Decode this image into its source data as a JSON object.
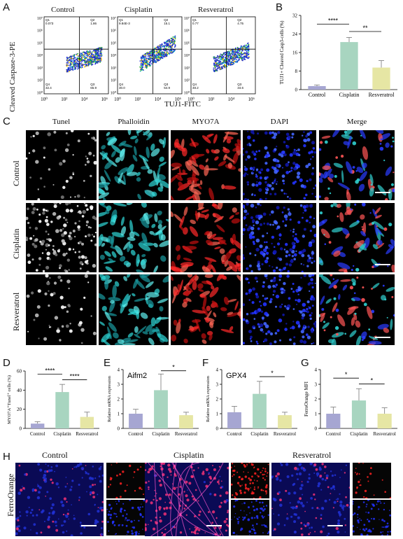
{
  "panels": {
    "A": "A",
    "B": "B",
    "C": "C",
    "D": "D",
    "E": "E",
    "F": "F",
    "G": "G",
    "H": "H"
  },
  "panelA": {
    "ylabel": "Cleaved Caspase-3-PE",
    "xlabel": "TUJ1-FITC",
    "plots": [
      {
        "title": "Control",
        "q1": "Q1\n0.073",
        "q2": "Q2\n1.86",
        "q3": "Q3\n65.9",
        "q4": "Q4\n32.4"
      },
      {
        "title": "Cisplatin",
        "q1": "Q1\n9.84E-3",
        "q2": "Q2\n15.1",
        "q3": "Q3\n54.9",
        "q4": "Q4\n30.0"
      },
      {
        "title": "Resveratrol",
        "q1": "Q1\n0.77",
        "q2": "Q2\n4.75",
        "q3": "Q3\n34.6",
        "q4": "Q4\n48.2"
      }
    ],
    "x_ticks": [
      "10⁰",
      "10²",
      "10⁴",
      "10⁶"
    ],
    "y_ticks": [
      "10⁷",
      "10⁶",
      "10⁵",
      "10⁴",
      "10³",
      "10²",
      "10⁰"
    ]
  },
  "panelC": {
    "columns": [
      "Tunel",
      "Phalloidin",
      "MYO7A",
      "DAPI",
      "Merge"
    ],
    "rows": [
      "Control",
      "Cisplatin",
      "Resveratrol"
    ]
  },
  "panelH": {
    "side_label": "FerroOrange",
    "groups": [
      "Control",
      "Cisplatin",
      "Resveratrol"
    ]
  },
  "colors": {
    "Control": "#a6a6d2",
    "Cisplatin": "#a8d5c0",
    "Resveratrol": "#e6e6a4"
  },
  "chart_data": [
    {
      "panel": "B",
      "type": "bar",
      "categories": [
        "Control",
        "Cisplatin",
        "Resveratrol"
      ],
      "values": [
        1.5,
        20.5,
        9.5
      ],
      "errors": [
        0.5,
        2.0,
        3.0
      ],
      "ylabel": "TUJ1+ Cleaved Casp3-cells (%)",
      "ylim": [
        0,
        32
      ],
      "yticks": [
        0,
        8,
        16,
        24,
        32
      ],
      "sig": [
        {
          "a": 0,
          "b": 1,
          "label": "****"
        },
        {
          "a": 1,
          "b": 2,
          "label": "**"
        }
      ]
    },
    {
      "panel": "D",
      "type": "bar",
      "categories": [
        "Control",
        "Cisplatin",
        "Resveratrol"
      ],
      "values": [
        5,
        38,
        12
      ],
      "errors": [
        2,
        8,
        5
      ],
      "ylabel": "MYO7A⁺Tunel⁺ cells (%)",
      "ylim": [
        0,
        60
      ],
      "yticks": [
        0,
        20,
        40,
        60
      ],
      "sig": [
        {
          "a": 0,
          "b": 1,
          "label": "****"
        },
        {
          "a": 1,
          "b": 2,
          "label": "****"
        }
      ]
    },
    {
      "panel": "E",
      "type": "bar",
      "title": "Aifm2",
      "categories": [
        "Control",
        "Cisplatin",
        "Resveratrol"
      ],
      "values": [
        1.0,
        2.6,
        0.9
      ],
      "errors": [
        0.3,
        1.1,
        0.2
      ],
      "ylabel": "Relative mRNA expression",
      "ylim": [
        0,
        4
      ],
      "yticks": [
        0,
        1,
        2,
        3,
        4
      ],
      "sig": [
        {
          "a": 1,
          "b": 2,
          "label": "*"
        }
      ]
    },
    {
      "panel": "F",
      "type": "bar",
      "title": "GPX4",
      "categories": [
        "Control",
        "Cisplatin",
        "Resveratrol"
      ],
      "values": [
        1.1,
        2.35,
        0.9
      ],
      "errors": [
        0.4,
        0.85,
        0.2
      ],
      "ylabel": "Relative mRNA expression",
      "ylim": [
        0,
        4
      ],
      "yticks": [
        0,
        1,
        2,
        3,
        4
      ],
      "sig": [
        {
          "a": 1,
          "b": 2,
          "label": "*"
        }
      ]
    },
    {
      "panel": "G",
      "type": "bar",
      "categories": [
        "Control",
        "Cisplatin",
        "Resveratrol"
      ],
      "values": [
        1.0,
        1.9,
        1.0
      ],
      "errors": [
        0.45,
        0.8,
        0.4
      ],
      "ylabel": "FerroOrange MFI",
      "ylim": [
        0,
        4
      ],
      "yticks": [
        0,
        1,
        2,
        3,
        4
      ],
      "sig": [
        {
          "a": 0,
          "b": 1,
          "label": "*"
        },
        {
          "a": 1,
          "b": 2,
          "label": "*"
        }
      ]
    }
  ]
}
